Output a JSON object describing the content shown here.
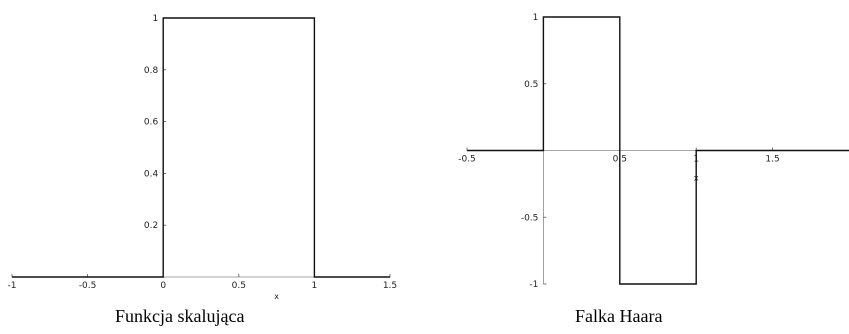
{
  "chart_data": [
    {
      "type": "line",
      "caption": "Funkcja skalująca",
      "xlabel": "x",
      "ylabel": "",
      "xlim": [
        -1,
        1.5
      ],
      "ylim": [
        0,
        1
      ],
      "xticks": [
        -1,
        -0.5,
        0,
        0.5,
        1,
        1.5
      ],
      "xtick_labels": [
        "-1",
        "-0.5",
        "0",
        "0.5",
        "1",
        "1.5"
      ],
      "yticks": [
        0.2,
        0.4,
        0.6,
        0.8,
        1
      ],
      "ytick_labels": [
        "0.2",
        "0.4",
        "0.6",
        "0.8",
        "1"
      ],
      "series": [
        {
          "x": [
            -1,
            0,
            0,
            1,
            1,
            1.5
          ],
          "y": [
            0,
            0,
            1,
            1,
            0,
            0
          ]
        }
      ],
      "grid": false
    },
    {
      "type": "line",
      "caption": "Falka Haara",
      "xlabel": "x",
      "ylabel": "",
      "xlim": [
        -0.5,
        2
      ],
      "ylim": [
        -1,
        1
      ],
      "xticks": [
        -0.5,
        0.5,
        1,
        1.5
      ],
      "xtick_labels": [
        "-0.5",
        "0.5",
        "1",
        "1.5"
      ],
      "yticks": [
        -1,
        -0.5,
        0.5,
        1
      ],
      "ytick_labels": [
        "-1",
        "-0.5",
        "0.5",
        "1"
      ],
      "series": [
        {
          "x": [
            -0.5,
            0,
            0,
            0.5,
            0.5,
            1,
            1,
            2
          ],
          "y": [
            0,
            0,
            1,
            1,
            -1,
            -1,
            0,
            0
          ]
        }
      ],
      "grid": false
    }
  ]
}
